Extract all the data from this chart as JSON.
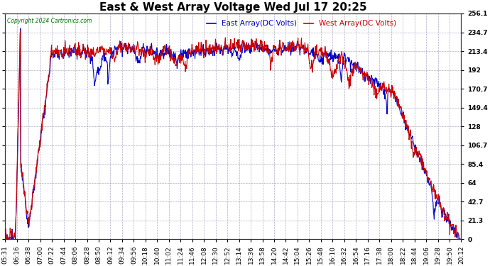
{
  "title": "East & West Array Voltage Wed Jul 17 20:25",
  "copyright": "Copyright 2024 Cartronics.com",
  "legend_east": "East Array(DC Volts)",
  "legend_west": "West Array(DC Volts)",
  "east_color": "#0000cc",
  "west_color": "#cc0000",
  "background_color": "#ffffff",
  "plot_bg_color": "#ffffff",
  "grid_color": "#9999bb",
  "ylim": [
    0.0,
    256.1
  ],
  "yticks": [
    0.0,
    21.3,
    42.7,
    64.0,
    85.4,
    106.7,
    128.0,
    149.4,
    170.7,
    192.0,
    213.4,
    234.7,
    256.1
  ],
  "xtick_labels": [
    "05:31",
    "06:16",
    "06:38",
    "07:00",
    "07:22",
    "07:44",
    "08:06",
    "08:28",
    "08:50",
    "09:12",
    "09:34",
    "09:56",
    "10:18",
    "10:40",
    "11:02",
    "11:24",
    "11:46",
    "12:08",
    "12:30",
    "12:52",
    "13:14",
    "13:36",
    "13:58",
    "14:20",
    "14:42",
    "15:04",
    "15:26",
    "15:48",
    "16:10",
    "16:32",
    "16:54",
    "17:16",
    "17:38",
    "18:00",
    "18:22",
    "18:44",
    "19:06",
    "19:28",
    "19:50",
    "20:12"
  ],
  "title_fontsize": 11,
  "label_fontsize": 6.5,
  "legend_fontsize": 7.5,
  "line_width": 0.8
}
